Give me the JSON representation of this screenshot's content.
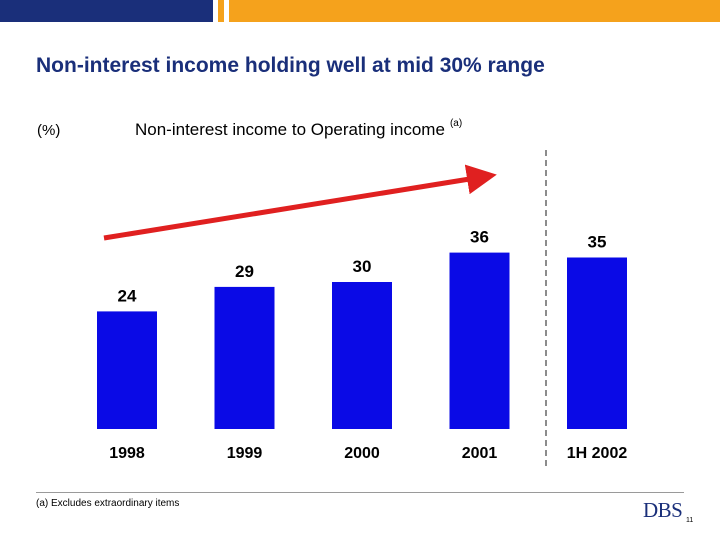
{
  "slide": {
    "title": "Non-interest income holding well at mid 30% range",
    "footnote": "(a) Excludes extraordinary items",
    "logo_text": "DBS",
    "page_number": "11"
  },
  "colors": {
    "bar": "#0a0ae6",
    "title": "#1a2f7a",
    "arrow": "#e02020",
    "top_bar_blue": "#1a2f7a",
    "top_bar_orange": "#f5a21c"
  },
  "chart_data": {
    "type": "bar",
    "title": "Non-interest income to Operating income",
    "title_note": "(a)",
    "ylabel": "(%)",
    "categories": [
      "1998",
      "1999",
      "2000",
      "2001",
      "1H 2002"
    ],
    "values": [
      24,
      29,
      30,
      36,
      35
    ],
    "ylim": [
      0,
      40
    ],
    "grid": false,
    "legend": "none",
    "annotations": [
      "upward trend arrow across 1998-2001",
      "dashed separator between 2001 and 1H 2002"
    ]
  }
}
